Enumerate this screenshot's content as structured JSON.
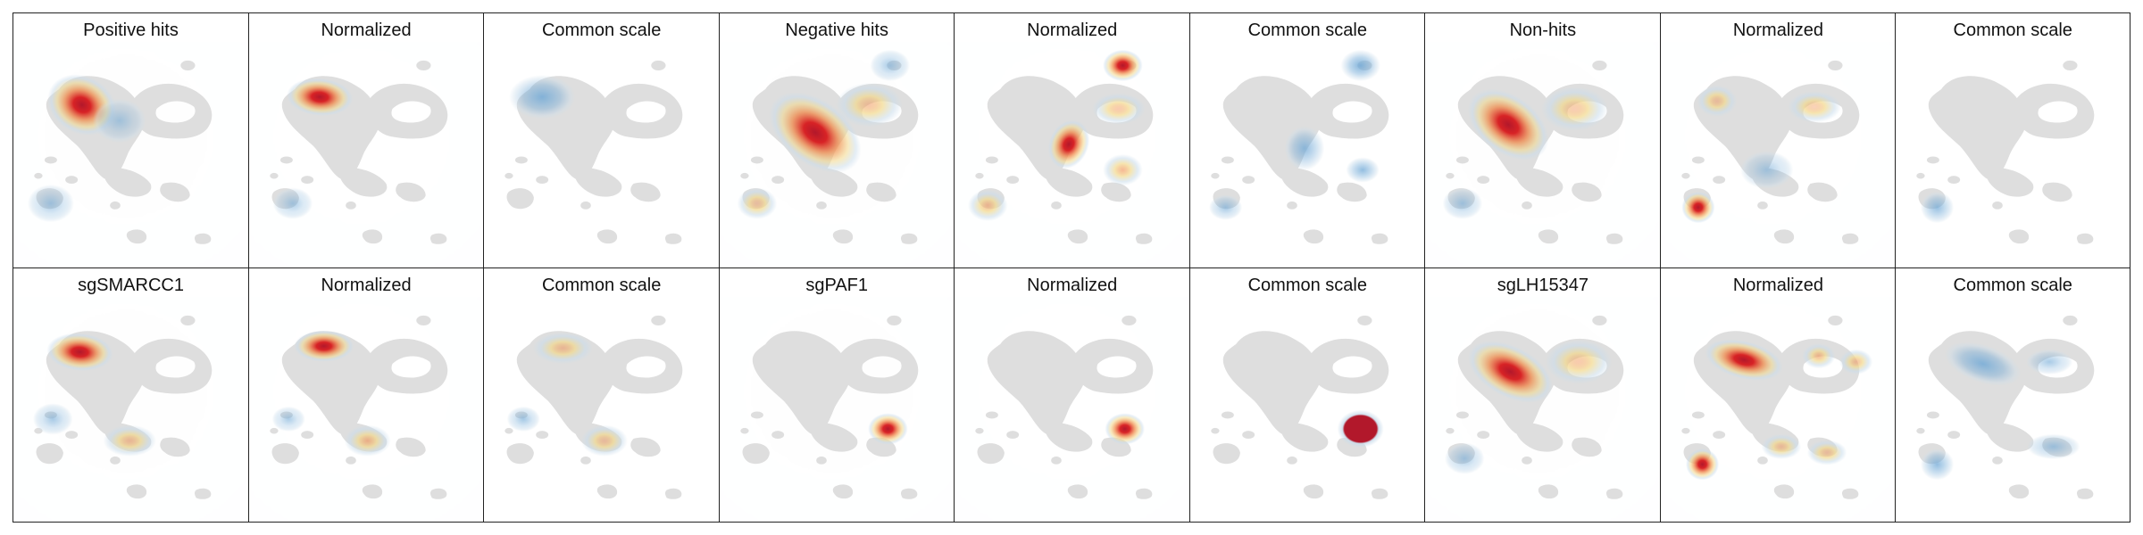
{
  "figure": {
    "rows": [
      {
        "panels": [
          {
            "title": "Positive hits",
            "variant": "hits",
            "hotspots": [
              {
                "u": 0.27,
                "v": 0.22,
                "rx": 0.11,
                "ry": 0.09,
                "rot": 35,
                "level": 1.0,
                "palette": "red"
              },
              {
                "u": 0.45,
                "v": 0.3,
                "rx": 0.08,
                "ry": 0.07,
                "rot": 0,
                "level": 0.22,
                "palette": "blue"
              },
              {
                "u": 0.12,
                "v": 0.72,
                "rx": 0.07,
                "ry": 0.06,
                "rot": 0,
                "level": 0.3,
                "palette": "blue"
              }
            ]
          },
          {
            "title": "Normalized",
            "variant": "norm",
            "hotspots": [
              {
                "u": 0.28,
                "v": 0.18,
                "rx": 0.1,
                "ry": 0.06,
                "rot": 5,
                "level": 1.0,
                "palette": "red"
              },
              {
                "u": 0.15,
                "v": 0.72,
                "rx": 0.06,
                "ry": 0.05,
                "rot": 0,
                "level": 0.25,
                "palette": "blue"
              }
            ]
          },
          {
            "title": "Common scale",
            "variant": "common",
            "hotspots": [
              {
                "u": 0.22,
                "v": 0.18,
                "rx": 0.1,
                "ry": 0.07,
                "rot": 0,
                "level": 0.75,
                "palette": "blue"
              }
            ]
          },
          {
            "title": "Negative hits",
            "variant": "hits",
            "hotspots": [
              {
                "u": 0.4,
                "v": 0.36,
                "rx": 0.16,
                "ry": 0.1,
                "rot": 40,
                "level": 1.0,
                "palette": "red"
              },
              {
                "u": 0.66,
                "v": 0.22,
                "rx": 0.1,
                "ry": 0.07,
                "rot": 0,
                "level": 0.45,
                "palette": "yellow"
              },
              {
                "u": 0.76,
                "v": 0.02,
                "rx": 0.06,
                "ry": 0.05,
                "rot": 0,
                "level": 0.3,
                "palette": "blue"
              },
              {
                "u": 0.12,
                "v": 0.72,
                "rx": 0.06,
                "ry": 0.05,
                "rot": 0,
                "level": 0.35,
                "palette": "yellow"
              }
            ]
          },
          {
            "title": "Normalized",
            "variant": "norm",
            "hotspots": [
              {
                "u": 0.75,
                "v": 0.02,
                "rx": 0.06,
                "ry": 0.05,
                "rot": 0,
                "level": 1.0,
                "palette": "red"
              },
              {
                "u": 0.49,
                "v": 0.42,
                "rx": 0.06,
                "ry": 0.08,
                "rot": 20,
                "level": 1.0,
                "palette": "red"
              },
              {
                "u": 0.75,
                "v": 0.55,
                "rx": 0.06,
                "ry": 0.05,
                "rot": 0,
                "level": 0.65,
                "palette": "yellow"
              },
              {
                "u": 0.73,
                "v": 0.24,
                "rx": 0.08,
                "ry": 0.05,
                "rot": 0,
                "level": 0.4,
                "palette": "yellow"
              },
              {
                "u": 0.1,
                "v": 0.73,
                "rx": 0.06,
                "ry": 0.05,
                "rot": 0,
                "level": 0.55,
                "palette": "yellow"
              }
            ]
          },
          {
            "title": "Common scale",
            "variant": "common",
            "hotspots": [
              {
                "u": 0.76,
                "v": 0.02,
                "rx": 0.06,
                "ry": 0.05,
                "rot": 0,
                "level": 0.8,
                "palette": "blue"
              },
              {
                "u": 0.49,
                "v": 0.44,
                "rx": 0.06,
                "ry": 0.07,
                "rot": 0,
                "level": 0.6,
                "palette": "blue"
              },
              {
                "u": 0.77,
                "v": 0.55,
                "rx": 0.05,
                "ry": 0.04,
                "rot": 0,
                "level": 0.6,
                "palette": "blue"
              },
              {
                "u": 0.11,
                "v": 0.74,
                "rx": 0.05,
                "ry": 0.04,
                "rot": 0,
                "level": 0.35,
                "palette": "blue"
              }
            ]
          },
          {
            "title": "Non-hits",
            "variant": "hits",
            "hotspots": [
              {
                "u": 0.34,
                "v": 0.32,
                "rx": 0.14,
                "ry": 0.09,
                "rot": 40,
                "level": 1.0,
                "palette": "red"
              },
              {
                "u": 0.66,
                "v": 0.24,
                "rx": 0.1,
                "ry": 0.07,
                "rot": 0,
                "level": 0.35,
                "palette": "yellow"
              },
              {
                "u": 0.12,
                "v": 0.72,
                "rx": 0.06,
                "ry": 0.05,
                "rot": 0,
                "level": 0.3,
                "palette": "blue"
              }
            ]
          },
          {
            "title": "Normalized",
            "variant": "norm",
            "hotspots": [
              {
                "u": 0.12,
                "v": 0.74,
                "rx": 0.05,
                "ry": 0.05,
                "rot": 0,
                "level": 1.0,
                "palette": "red"
              },
              {
                "u": 0.21,
                "v": 0.2,
                "rx": 0.06,
                "ry": 0.05,
                "rot": 0,
                "level": 0.4,
                "palette": "yellow"
              },
              {
                "u": 0.68,
                "v": 0.23,
                "rx": 0.08,
                "ry": 0.05,
                "rot": 0,
                "level": 0.3,
                "palette": "yellow"
              },
              {
                "u": 0.45,
                "v": 0.55,
                "rx": 0.08,
                "ry": 0.06,
                "rot": 0,
                "level": 0.25,
                "palette": "blue"
              }
            ]
          },
          {
            "title": "Common scale",
            "variant": "common",
            "hotspots": [
              {
                "u": 0.14,
                "v": 0.74,
                "rx": 0.05,
                "ry": 0.05,
                "rot": 0,
                "level": 0.55,
                "palette": "blue"
              }
            ]
          }
        ]
      },
      {
        "panels": [
          {
            "title": "sgSMARCC1",
            "variant": "hits",
            "hotspots": [
              {
                "u": 0.26,
                "v": 0.18,
                "rx": 0.1,
                "ry": 0.06,
                "rot": 5,
                "level": 1.0,
                "palette": "red"
              },
              {
                "u": 0.5,
                "v": 0.63,
                "rx": 0.08,
                "ry": 0.05,
                "rot": 0,
                "level": 0.5,
                "palette": "yellow"
              },
              {
                "u": 0.13,
                "v": 0.52,
                "rx": 0.06,
                "ry": 0.05,
                "rot": 0,
                "level": 0.3,
                "palette": "blue"
              }
            ]
          },
          {
            "title": "Normalized",
            "variant": "norm",
            "hotspots": [
              {
                "u": 0.3,
                "v": 0.15,
                "rx": 0.09,
                "ry": 0.05,
                "rot": 0,
                "level": 1.0,
                "palette": "red"
              },
              {
                "u": 0.51,
                "v": 0.63,
                "rx": 0.07,
                "ry": 0.05,
                "rot": 0,
                "level": 0.65,
                "palette": "yellow"
              },
              {
                "u": 0.13,
                "v": 0.52,
                "rx": 0.05,
                "ry": 0.04,
                "rot": 0,
                "level": 0.25,
                "palette": "blue"
              }
            ]
          },
          {
            "title": "Common scale",
            "variant": "common",
            "hotspots": [
              {
                "u": 0.32,
                "v": 0.16,
                "rx": 0.09,
                "ry": 0.05,
                "rot": 0,
                "level": 0.5,
                "palette": "yellow"
              },
              {
                "u": 0.52,
                "v": 0.63,
                "rx": 0.07,
                "ry": 0.05,
                "rot": 0,
                "level": 0.4,
                "palette": "yellow"
              },
              {
                "u": 0.13,
                "v": 0.52,
                "rx": 0.05,
                "ry": 0.04,
                "rot": 0,
                "level": 0.35,
                "palette": "blue"
              }
            ]
          },
          {
            "title": "sgPAF1",
            "variant": "hits",
            "hotspots": [
              {
                "u": 0.75,
                "v": 0.57,
                "rx": 0.06,
                "ry": 0.05,
                "rot": 0,
                "level": 1.0,
                "palette": "red"
              }
            ]
          },
          {
            "title": "Normalized",
            "variant": "norm",
            "hotspots": [
              {
                "u": 0.76,
                "v": 0.57,
                "rx": 0.06,
                "ry": 0.05,
                "rot": 0,
                "level": 1.0,
                "palette": "red"
              }
            ]
          },
          {
            "title": "Common scale",
            "variant": "common",
            "hotspots": [
              {
                "u": 0.76,
                "v": 0.57,
                "rx": 0.07,
                "ry": 0.06,
                "rot": 0,
                "level": 1.0,
                "palette": "solid"
              }
            ]
          },
          {
            "title": "sgLH15347",
            "variant": "hits",
            "hotspots": [
              {
                "u": 0.35,
                "v": 0.28,
                "rx": 0.14,
                "ry": 0.08,
                "rot": 30,
                "level": 1.0,
                "palette": "red"
              },
              {
                "u": 0.68,
                "v": 0.23,
                "rx": 0.1,
                "ry": 0.07,
                "rot": 0,
                "level": 0.4,
                "palette": "yellow"
              },
              {
                "u": 0.13,
                "v": 0.72,
                "rx": 0.06,
                "ry": 0.05,
                "rot": 0,
                "level": 0.3,
                "palette": "blue"
              }
            ]
          },
          {
            "title": "Normalized",
            "variant": "norm",
            "hotspots": [
              {
                "u": 0.34,
                "v": 0.22,
                "rx": 0.12,
                "ry": 0.06,
                "rot": 15,
                "level": 1.0,
                "palette": "red"
              },
              {
                "u": 0.7,
                "v": 0.2,
                "rx": 0.05,
                "ry": 0.04,
                "rot": 0,
                "level": 0.6,
                "palette": "yellow"
              },
              {
                "u": 0.88,
                "v": 0.23,
                "rx": 0.05,
                "ry": 0.04,
                "rot": 0,
                "level": 0.5,
                "palette": "yellow"
              },
              {
                "u": 0.14,
                "v": 0.75,
                "rx": 0.05,
                "ry": 0.05,
                "rot": 0,
                "level": 0.9,
                "palette": "red"
              },
              {
                "u": 0.52,
                "v": 0.66,
                "rx": 0.06,
                "ry": 0.04,
                "rot": 0,
                "level": 0.45,
                "palette": "yellow"
              },
              {
                "u": 0.74,
                "v": 0.69,
                "rx": 0.06,
                "ry": 0.04,
                "rot": 0,
                "level": 0.4,
                "palette": "yellow"
              }
            ]
          },
          {
            "title": "Common scale",
            "variant": "common",
            "hotspots": [
              {
                "u": 0.36,
                "v": 0.24,
                "rx": 0.12,
                "ry": 0.06,
                "rot": 20,
                "level": 0.75,
                "palette": "blue"
              },
              {
                "u": 0.14,
                "v": 0.75,
                "rx": 0.05,
                "ry": 0.05,
                "rot": 0,
                "level": 0.6,
                "palette": "blue"
              },
              {
                "u": 0.68,
                "v": 0.23,
                "rx": 0.07,
                "ry": 0.04,
                "rot": 0,
                "level": 0.3,
                "palette": "blue"
              },
              {
                "u": 0.7,
                "v": 0.66,
                "rx": 0.08,
                "ry": 0.04,
                "rot": 0,
                "level": 0.35,
                "palette": "blue"
              }
            ]
          }
        ]
      }
    ]
  },
  "colors": {
    "border": "#222222",
    "background": "#ffffff",
    "cluster_fill": "#d9d9d9",
    "density_halo": "#c9dceb",
    "blue": "#6fa8d6",
    "yellow": "#f3d98b",
    "orange": "#f08a4b",
    "red": "#d7191c",
    "dark_red": "#b2182b"
  }
}
